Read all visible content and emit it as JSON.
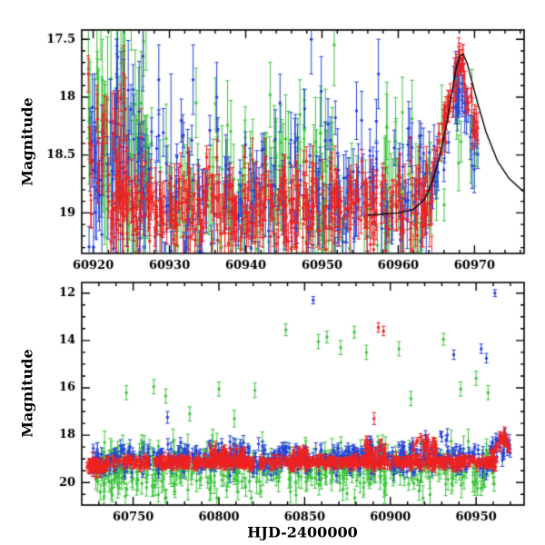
{
  "figure": {
    "background": "#ffffff"
  },
  "chart_data": [
    {
      "id": "top-panel",
      "type": "scatter",
      "title": "",
      "xlabel": "",
      "ylabel": "Magnitude",
      "xlim": [
        60918.5,
        60976.5
      ],
      "ylim_mag": [
        17.42,
        19.35
      ],
      "y_axis_inverted_magnitude": true,
      "grid": false,
      "xticks": {
        "major": [
          60920,
          60930,
          60940,
          60950,
          60960,
          60970
        ],
        "minor_step": 2,
        "labels": [
          "60920",
          "60930",
          "60940",
          "60950",
          "60960",
          "60970"
        ]
      },
      "yticks": {
        "major": [
          17.5,
          18,
          18.5,
          19
        ],
        "minor_step": 0.1,
        "labels": [
          "17.5",
          "18",
          "18.5",
          "19"
        ]
      },
      "series": [
        {
          "name": "green-band",
          "color": "#3cc43c",
          "segments": [
            [
              60919.3,
              60927,
              55,
              18.35,
              18.35,
              0.55,
              0.45
            ],
            [
              60925,
              60963.5,
              200,
              18.85,
              18.85,
              0.33,
              0.28
            ],
            [
              60963.5,
              60966.5,
              8,
              19.0,
              18.6,
              0.2,
              0.25
            ],
            [
              60967,
              60970.3,
              10,
              17.95,
              18.45,
              0.2,
              0.2
            ]
          ],
          "outliers": [
            [
              60921.2,
              17.85,
              0.35
            ],
            [
              60924.1,
              17.6,
              0.3
            ],
            [
              60926.6,
              17.52,
              0.3
            ],
            [
              60933.5,
              18.05,
              0.3
            ],
            [
              60943.2,
              17.98,
              0.28
            ],
            [
              60947.1,
              18.15,
              0.3
            ],
            [
              60951.6,
              17.55,
              0.35
            ],
            [
              60936.8,
              19.3,
              0.25
            ]
          ]
        },
        {
          "name": "blue-band",
          "color": "#2743d8",
          "segments": [
            [
              60919.3,
              60927,
              55,
              18.5,
              18.5,
              0.5,
              0.3
            ],
            [
              60925,
              60964,
              230,
              18.82,
              18.82,
              0.3,
              0.18
            ],
            [
              60963.8,
              60967.2,
              15,
              18.9,
              18.1,
              0.15,
              0.15
            ],
            [
              60967.2,
              60968.6,
              14,
              17.95,
              17.95,
              0.12,
              0.15
            ],
            [
              60968.6,
              60970.5,
              12,
              18.1,
              18.5,
              0.12,
              0.15
            ]
          ],
          "outliers": [
            [
              60923.1,
              17.8,
              0.3
            ],
            [
              60928.6,
              17.85,
              0.3
            ],
            [
              60930.2,
              18.7,
              0.9
            ],
            [
              60933.1,
              17.85,
              0.3
            ],
            [
              60936.2,
              18.0,
              0.3
            ],
            [
              60944.5,
              18.05,
              0.25
            ],
            [
              60948.6,
              17.5,
              0.3
            ],
            [
              60949.9,
              17.95,
              0.3
            ],
            [
              60955.2,
              18.2,
              0.25
            ],
            [
              60957.4,
              17.8,
              0.3
            ],
            [
              60961.5,
              18.35,
              0.25
            ],
            [
              60963.0,
              19.25,
              0.2
            ]
          ]
        },
        {
          "name": "red-band",
          "color": "#ee2222",
          "segments": [
            [
              60919.3,
              60924.5,
              30,
              18.55,
              18.55,
              0.4,
              0.2
            ],
            [
              60922,
              60964.5,
              420,
              18.95,
              18.95,
              0.18,
              0.15
            ],
            [
              60964.5,
              60967.9,
              28,
              18.55,
              17.78,
              0.1,
              0.1
            ],
            [
              60967.9,
              60968.6,
              10,
              17.68,
              17.68,
              0.06,
              0.09
            ],
            [
              60968.6,
              60970.5,
              16,
              17.8,
              18.4,
              0.1,
              0.1
            ]
          ],
          "outliers": [
            [
              60920.5,
              18.1,
              0.2
            ],
            [
              60921.8,
              18.2,
              0.2
            ],
            [
              60926.3,
              18.35,
              0.25
            ]
          ]
        }
      ],
      "model_curve": {
        "name": "outburst-model-fit",
        "color": "#000000",
        "points": [
          [
            60956,
            19.02
          ],
          [
            60960,
            19.0
          ],
          [
            60962,
            18.97
          ],
          [
            60963.5,
            18.88
          ],
          [
            60964.5,
            18.72
          ],
          [
            60965.5,
            18.5
          ],
          [
            60966.3,
            18.25
          ],
          [
            60967,
            17.97
          ],
          [
            60967.6,
            17.75
          ],
          [
            60968.1,
            17.64
          ],
          [
            60968.5,
            17.63
          ],
          [
            60969,
            17.7
          ],
          [
            60969.6,
            17.85
          ],
          [
            60970.4,
            18.05
          ],
          [
            60971.5,
            18.3
          ],
          [
            60973,
            18.55
          ],
          [
            60974.5,
            18.7
          ],
          [
            60976.5,
            18.82
          ]
        ]
      }
    },
    {
      "id": "bottom-panel",
      "type": "scatter",
      "title": "",
      "xlabel": "HJD-2400000",
      "ylabel": "Magnitude",
      "xlim": [
        60720,
        60978
      ],
      "ylim_mag": [
        11.55,
        20.95
      ],
      "y_axis_inverted_magnitude": true,
      "grid": false,
      "xticks": {
        "major": [
          60750,
          60800,
          60850,
          60900,
          60950
        ],
        "minor_step": 10,
        "labels": [
          "60750",
          "60800",
          "60850",
          "60900",
          "60950"
        ]
      },
      "yticks": {
        "major": [
          12,
          14,
          16,
          18,
          20
        ],
        "minor_step": 0.5,
        "labels": [
          "12",
          "14",
          "16",
          "18",
          "20"
        ]
      },
      "series": [
        {
          "name": "green-band",
          "color": "#3cc43c",
          "segments": [
            [
              60728,
              60962,
              430,
              19.45,
              19.45,
              0.5,
              0.38
            ],
            [
              60728,
              60745,
              20,
              19.8,
              19.8,
              0.4,
              0.4
            ]
          ],
          "outliers": [
            [
              60746,
              16.2,
              0.3
            ],
            [
              60762,
              15.95,
              0.3
            ],
            [
              60769,
              16.35,
              0.3
            ],
            [
              60783,
              17.1,
              0.3
            ],
            [
              60800,
              16.05,
              0.3
            ],
            [
              60809,
              17.3,
              0.35
            ],
            [
              60821,
              16.1,
              0.3
            ],
            [
              60839,
              13.55,
              0.25
            ],
            [
              60858,
              14.05,
              0.3
            ],
            [
              60863,
              13.85,
              0.25
            ],
            [
              60871,
              14.3,
              0.3
            ],
            [
              60879,
              13.65,
              0.25
            ],
            [
              60886,
              14.5,
              0.3
            ],
            [
              60905,
              14.35,
              0.3
            ],
            [
              60912,
              16.45,
              0.3
            ],
            [
              60931,
              13.95,
              0.25
            ],
            [
              60941,
              16.05,
              0.3
            ],
            [
              60950,
              15.6,
              0.3
            ],
            [
              60957,
              16.2,
              0.3
            ]
          ]
        },
        {
          "name": "blue-band",
          "color": "#2743d8",
          "segments": [
            [
              60725,
              60962,
              430,
              19.0,
              19.0,
              0.3,
              0.2
            ],
            [
              60795,
              60815,
              25,
              18.7,
              18.7,
              0.2,
              0.2
            ],
            [
              60880,
              60935,
              40,
              18.6,
              18.6,
              0.3,
              0.2
            ],
            [
              60958,
              60970,
              25,
              18.6,
              18.4,
              0.3,
              0.2
            ]
          ],
          "outliers": [
            [
              60770,
              17.25,
              0.25
            ],
            [
              60855,
              12.3,
              0.15
            ],
            [
              60937,
              14.6,
              0.2
            ],
            [
              60953,
              14.35,
              0.2
            ],
            [
              60956,
              14.75,
              0.2
            ],
            [
              60961,
              12.0,
              0.15
            ]
          ]
        },
        {
          "name": "red-band",
          "color": "#ee2222",
          "segments": [
            [
              60723,
              60734,
              45,
              19.32,
              19.32,
              0.12,
              0.22
            ],
            [
              60734,
              60962,
              650,
              19.15,
              19.15,
              0.1,
              0.15
            ],
            [
              60795,
              60815,
              45,
              18.85,
              18.85,
              0.2,
              0.18
            ],
            [
              60843,
              60852,
              25,
              18.8,
              18.8,
              0.15,
              0.15
            ],
            [
              60884,
              60897,
              35,
              18.55,
              18.75,
              0.25,
              0.18
            ],
            [
              60913,
              60927,
              35,
              18.6,
              18.6,
              0.25,
              0.18
            ],
            [
              60958,
              60966.5,
              20,
              19.0,
              18.05,
              0.15,
              0.15
            ],
            [
              60966.5,
              60970,
              12,
              18.1,
              18.6,
              0.15,
              0.15
            ]
          ],
          "outliers": [
            [
              60893,
              13.45,
              0.2
            ],
            [
              60896,
              13.6,
              0.2
            ],
            [
              60890.5,
              17.3,
              0.25
            ]
          ]
        }
      ]
    }
  ]
}
